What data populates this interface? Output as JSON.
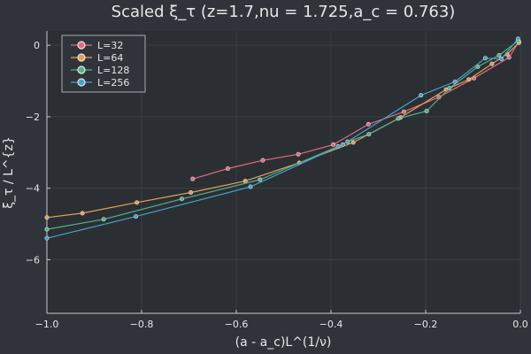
{
  "chart_data": {
    "type": "line",
    "title": "Scaled ξ_τ (z=1.7,nu = 1.725,a_c = 0.763)",
    "xlabel": "(a - a_c)L^(1/ν)",
    "ylabel": "ξ_τ / L^{z}",
    "xlim": [
      -1.0,
      0.0
    ],
    "ylim": [
      -7.5,
      0.4
    ],
    "xticks": [
      -1.0,
      -0.8,
      -0.6,
      -0.4,
      -0.2,
      0.0
    ],
    "xtick_labels": [
      "−1.0",
      "−0.8",
      "−0.6",
      "−0.4",
      "−0.2",
      "0.0"
    ],
    "yticks": [
      -6,
      -4,
      -2,
      0
    ],
    "ytick_labels": [
      "−6",
      "−4",
      "−2",
      "0"
    ],
    "grid": true,
    "legend_position": "top-left",
    "background": "#30343a",
    "series": [
      {
        "name": "L=32",
        "color": "#e26a85",
        "x": [
          -0.692,
          -0.618,
          -0.544,
          -0.469,
          -0.395,
          -0.321,
          -0.246,
          -0.172,
          -0.098,
          -0.024,
          -0.003
        ],
        "y": [
          -3.74,
          -3.45,
          -3.22,
          -3.05,
          -2.78,
          -2.21,
          -1.86,
          -1.45,
          -0.92,
          -0.34,
          0.1
        ]
      },
      {
        "name": "L=64",
        "color": "#e0a05c",
        "x": [
          -1.0,
          -0.925,
          -0.81,
          -0.696,
          -0.581,
          -0.467,
          -0.353,
          -0.253,
          -0.157,
          -0.109,
          -0.06,
          -0.028,
          -0.003
        ],
        "y": [
          -4.82,
          -4.7,
          -4.4,
          -4.12,
          -3.8,
          -3.29,
          -2.72,
          -2.02,
          -1.24,
          -0.96,
          -0.52,
          -0.25,
          0.07
        ]
      },
      {
        "name": "L=128",
        "color": "#56b08a",
        "x": [
          -1.0,
          -0.88,
          -0.715,
          -0.55,
          -0.385,
          -0.365,
          -0.32,
          -0.258,
          -0.198,
          -0.15,
          -0.09,
          -0.045,
          -0.005
        ],
        "y": [
          -5.15,
          -4.87,
          -4.3,
          -3.76,
          -2.83,
          -2.7,
          -2.49,
          -2.05,
          -1.84,
          -1.2,
          -0.6,
          -0.28,
          0.12
        ]
      },
      {
        "name": "L=256",
        "color": "#47a2c8",
        "x": [
          -1.0,
          -0.812,
          -0.57,
          -0.375,
          -0.21,
          -0.138,
          -0.074,
          -0.04,
          -0.005
        ],
        "y": [
          -5.4,
          -4.79,
          -3.96,
          -2.78,
          -1.4,
          -1.02,
          -0.36,
          -0.38,
          0.18
        ]
      }
    ]
  }
}
